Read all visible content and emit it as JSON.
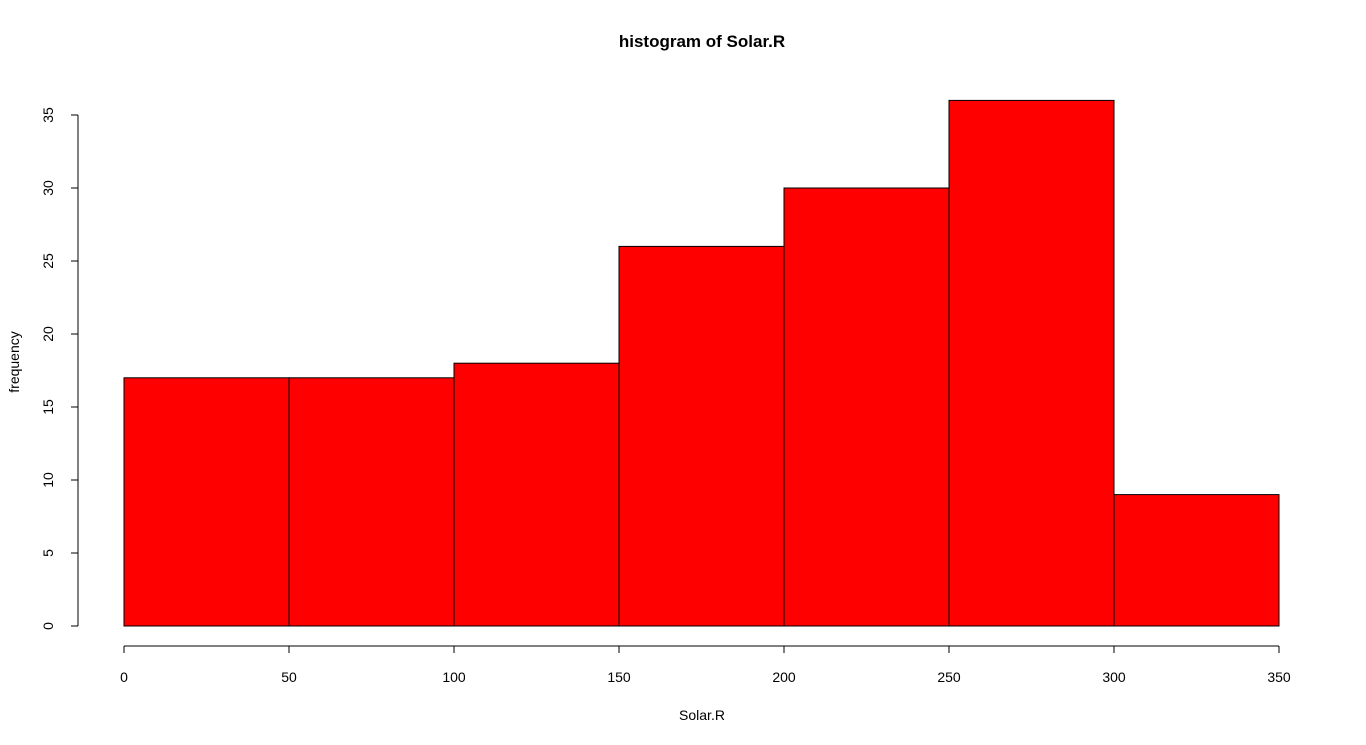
{
  "chart_data": {
    "type": "bar",
    "title": "histogram of Solar.R",
    "xlabel": "Solar.R",
    "ylabel": "frequency",
    "bins": [
      {
        "from": 0,
        "to": 50,
        "count": 17
      },
      {
        "from": 50,
        "to": 100,
        "count": 17
      },
      {
        "from": 100,
        "to": 150,
        "count": 18
      },
      {
        "from": 150,
        "to": 200,
        "count": 26
      },
      {
        "from": 200,
        "to": 250,
        "count": 30
      },
      {
        "from": 250,
        "to": 300,
        "count": 36
      },
      {
        "from": 300,
        "to": 350,
        "count": 9
      }
    ],
    "xlim": [
      0,
      350
    ],
    "ylim": [
      0,
      36
    ],
    "x_ticks": [
      0,
      50,
      100,
      150,
      200,
      250,
      300,
      350
    ],
    "y_ticks": [
      0,
      5,
      10,
      15,
      20,
      25,
      30,
      35
    ],
    "bar_color": "#ff0000",
    "border_color": "#000000",
    "grid": false
  }
}
